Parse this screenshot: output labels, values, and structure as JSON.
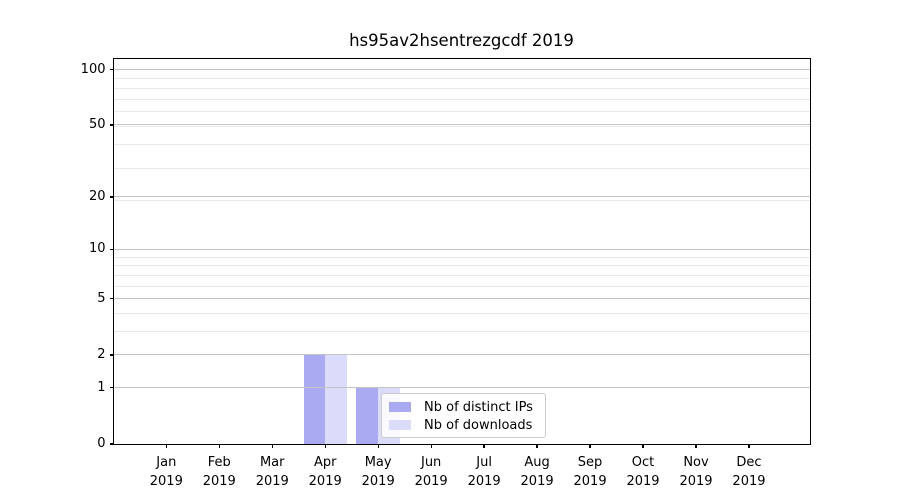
{
  "chart_data": {
    "type": "bar",
    "title": "hs95av2hsentrezgcdf 2019",
    "x": {
      "months": [
        "Jan",
        "Feb",
        "Mar",
        "Apr",
        "May",
        "Jun",
        "Jul",
        "Aug",
        "Sep",
        "Oct",
        "Nov",
        "Dec"
      ],
      "year": "2019"
    },
    "series": [
      {
        "name": "Nb of distinct IPs",
        "color": "#a9aaf2",
        "values": [
          0,
          0,
          0,
          2,
          1,
          0,
          0,
          0,
          0,
          0,
          0,
          0
        ]
      },
      {
        "name": "Nb of downloads",
        "color": "#dbdcf9",
        "values": [
          0,
          0,
          0,
          2,
          1,
          0,
          0,
          0,
          0,
          0,
          0,
          0
        ]
      }
    ],
    "yscale": "log1p",
    "ylim": [
      0,
      114.7
    ],
    "yticks": [
      0,
      1,
      2,
      5,
      10,
      20,
      50,
      100
    ],
    "yticks_minor": [
      3,
      4,
      6,
      7,
      8,
      9,
      19,
      29,
      39,
      49,
      59,
      69,
      79,
      89
    ],
    "grid": "horizontal-only",
    "legend": {
      "position": "lower center",
      "entries": [
        "Nb of distinct IPs",
        "Nb of downloads"
      ]
    }
  },
  "colors": {
    "background": "#ffffff",
    "bar_distinct_ips": "#a9aaf2",
    "bar_downloads": "#dbdcf9",
    "grid_major": "#c3c3c3",
    "grid_minor": "#e9e9e9",
    "axis": "#000000",
    "text": "#000000",
    "legend_border": "#cccccc"
  }
}
